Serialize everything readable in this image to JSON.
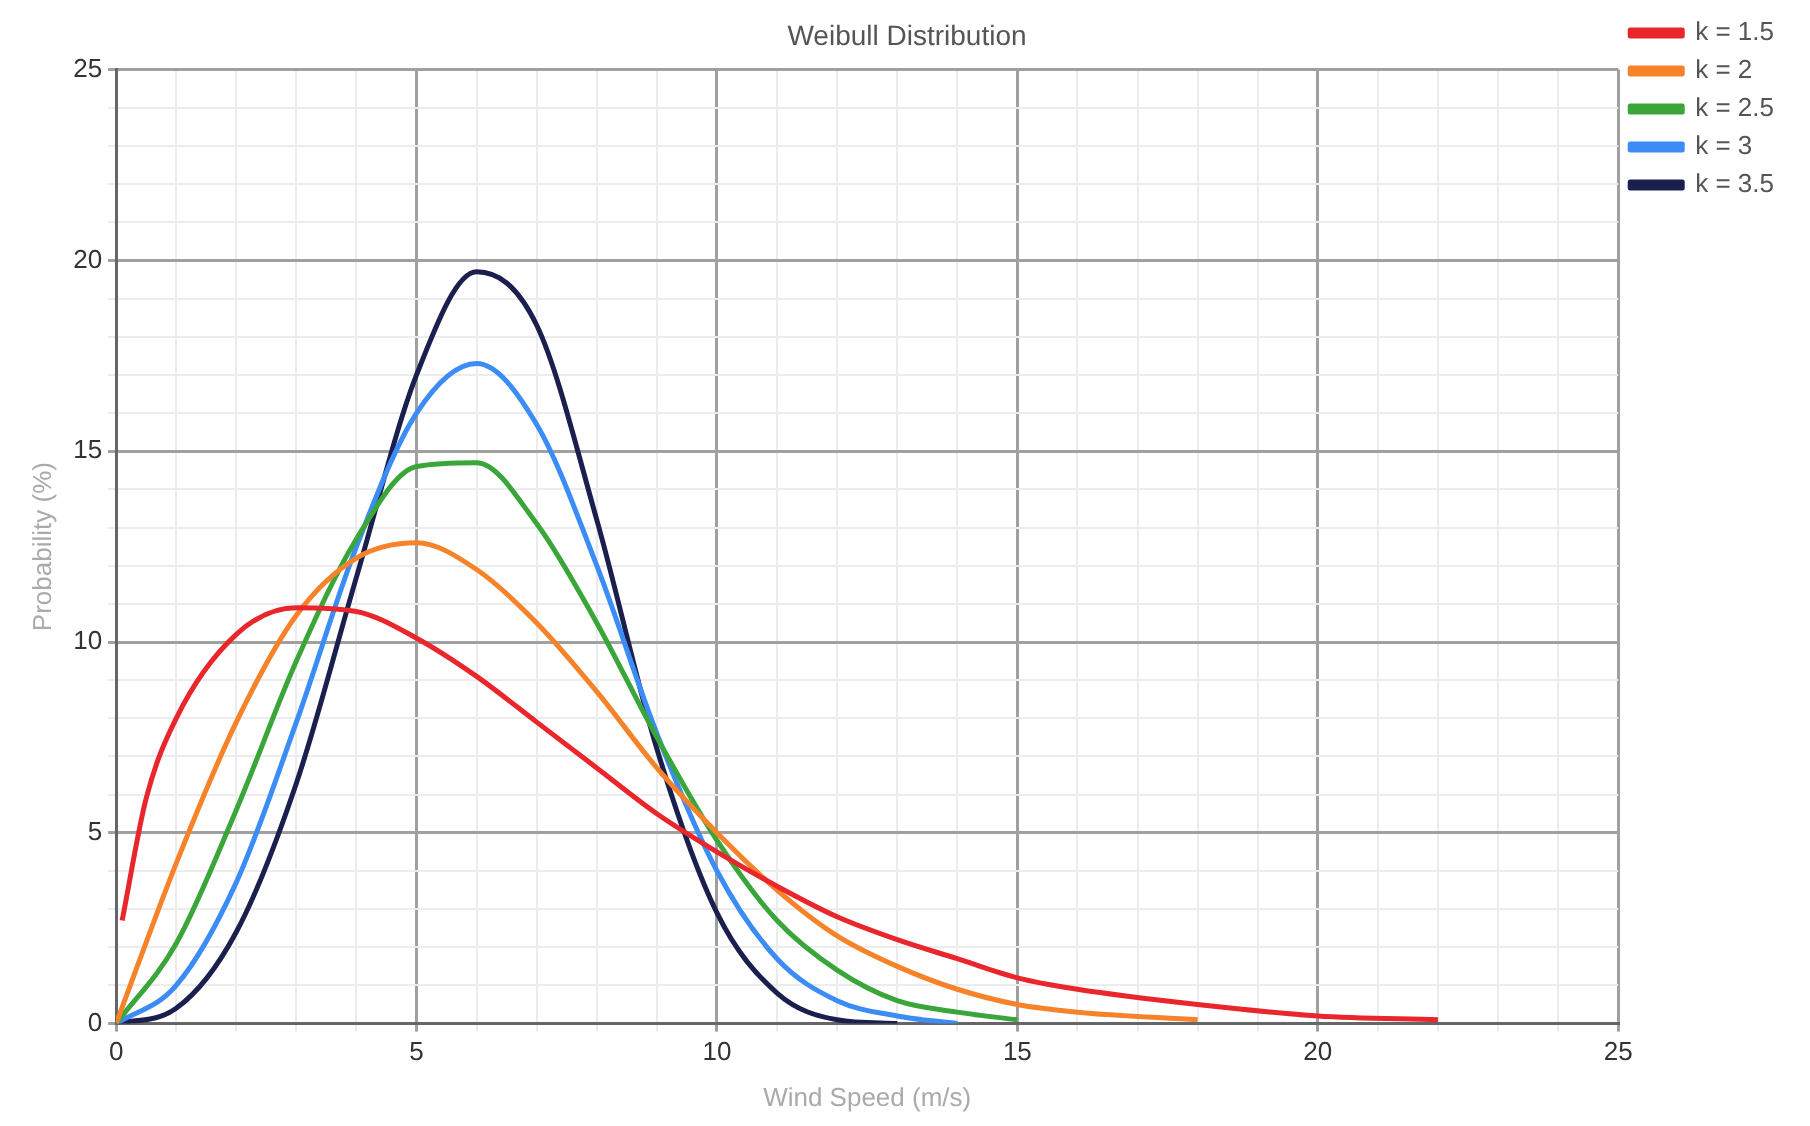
{
  "chart_data": {
    "type": "line",
    "title": "Weibull Distribution",
    "xlabel": "Wind Speed (m/s)",
    "ylabel": "Probability (%)",
    "xlim": [
      0,
      25
    ],
    "ylim": [
      0,
      25
    ],
    "xticks": [
      0,
      {
        "value": 1,
        "label": null
      },
      {
        "value": 2,
        "label": null
      },
      {
        "value": 3,
        "label": null
      },
      {
        "value": 4,
        "label": null
      },
      5,
      {
        "value": 6,
        "label": null
      },
      {
        "value": 7,
        "label": null
      },
      {
        "value": 8,
        "label": null
      },
      {
        "value": 9,
        "label": null
      },
      10,
      {
        "value": 11,
        "label": null
      },
      {
        "value": 12,
        "label": null
      },
      {
        "value": 13,
        "label": null
      },
      {
        "value": 14,
        "label": null
      },
      15,
      {
        "value": 16,
        "label": null
      },
      {
        "value": 17,
        "label": null
      },
      {
        "value": 18,
        "label": null
      },
      {
        "value": 19,
        "label": null
      },
      20,
      {
        "value": 21,
        "label": null
      },
      {
        "value": 22,
        "label": null
      },
      {
        "value": 23,
        "label": null
      },
      {
        "value": 24,
        "label": null
      },
      25
    ],
    "yticks": [
      0,
      {
        "value": 1,
        "label": null
      },
      {
        "value": 2,
        "label": null
      },
      {
        "value": 3,
        "label": null
      },
      {
        "value": 4,
        "label": null
      },
      5,
      {
        "value": 6,
        "label": null
      },
      {
        "value": 7,
        "label": null
      },
      {
        "value": 8,
        "label": null
      },
      {
        "value": 9,
        "label": null
      },
      10,
      {
        "value": 11,
        "label": null
      },
      {
        "value": 12,
        "label": null
      },
      {
        "value": 13,
        "label": null
      },
      {
        "value": 14,
        "label": null
      },
      15,
      {
        "value": 16,
        "label": null
      },
      {
        "value": 17,
        "label": null
      },
      {
        "value": 18,
        "label": null
      },
      {
        "value": 19,
        "label": null
      },
      20,
      {
        "value": 21,
        "label": null
      },
      {
        "value": 22,
        "label": null
      },
      {
        "value": 23,
        "label": null
      },
      {
        "value": 24,
        "label": null
      },
      25
    ],
    "grid": true,
    "legend": "top right",
    "marker": "none",
    "line_style": "solid",
    "series": [
      {
        "name": "k = 1.5",
        "color": "#e8262b",
        "x": [
          0.1,
          0.5,
          1,
          2,
          3,
          4,
          5,
          6,
          7,
          8,
          9,
          10,
          11,
          12,
          13,
          14,
          15,
          16,
          18,
          20,
          22
        ],
        "values": [
          2.7,
          5.9,
          8.0,
          10.2,
          10.9,
          10.8,
          10.1,
          9.1,
          7.9,
          6.7,
          5.5,
          4.5,
          3.6,
          2.8,
          2.2,
          1.7,
          1.2,
          0.9,
          0.5,
          0.2,
          0.1
        ]
      },
      {
        "name": "k = 2",
        "color": "#f6822a",
        "x": [
          0,
          1,
          2,
          3,
          4,
          5,
          6,
          7,
          8,
          9,
          10,
          11,
          12,
          13,
          14,
          15,
          16,
          18
        ],
        "values": [
          0,
          4.2,
          7.9,
          10.7,
          12.2,
          12.6,
          11.9,
          10.5,
          8.7,
          6.7,
          5.0,
          3.5,
          2.3,
          1.5,
          0.9,
          0.5,
          0.3,
          0.1
        ]
      },
      {
        "name": "k = 2.5",
        "color": "#3aa63a",
        "x": [
          0,
          1,
          2,
          3,
          4,
          5,
          6,
          7,
          8,
          9,
          10,
          11,
          12,
          13,
          14,
          15
        ],
        "values": [
          0,
          2.1,
          5.6,
          9.5,
          12.7,
          14.6,
          14.7,
          13.1,
          10.5,
          7.5,
          4.8,
          2.7,
          1.4,
          0.6,
          0.3,
          0.1
        ]
      },
      {
        "name": "k = 3",
        "color": "#3b8cf5",
        "x": [
          0,
          1,
          2,
          3,
          4,
          5,
          6,
          7,
          8,
          9,
          10,
          11,
          12,
          13,
          14
        ],
        "values": [
          0,
          1.0,
          3.7,
          7.9,
          12.5,
          16.0,
          17.3,
          15.7,
          12.0,
          7.6,
          4.0,
          1.7,
          0.6,
          0.2,
          0
        ]
      },
      {
        "name": "k = 3.5",
        "color": "#1a1f4e",
        "x": [
          0,
          1,
          2,
          3,
          4,
          5,
          6,
          7,
          8,
          9,
          10,
          11,
          12,
          13
        ],
        "values": [
          0,
          0.4,
          2.4,
          6.3,
          11.7,
          17.0,
          19.7,
          18.3,
          13.2,
          7.2,
          2.9,
          0.8,
          0.1,
          0
        ]
      }
    ]
  }
}
